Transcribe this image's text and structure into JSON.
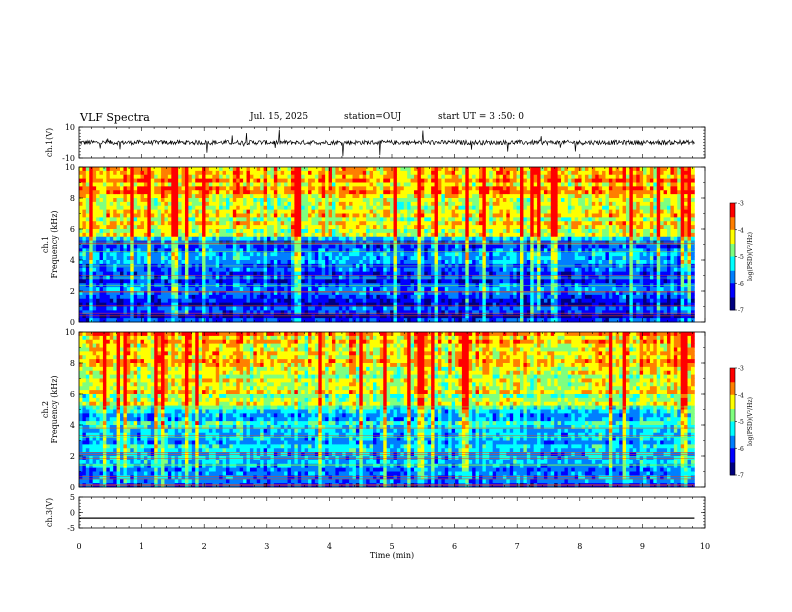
{
  "header": {
    "title": "VLF Spectra",
    "date": "Jul. 15, 2025",
    "station": "station=OUJ",
    "start_time": "start UT =  3 :50: 0"
  },
  "chart_data": [
    {
      "type": "line",
      "id": "ch1-waveform",
      "ylabel": "ch.1(V)",
      "ylim": [
        -10,
        10
      ],
      "yticks": [
        "10",
        "-10"
      ],
      "baseline": 0,
      "noise_amplitude": 1.5
    },
    {
      "type": "heatmap",
      "id": "ch1-spectrogram",
      "ylabel": "ch.1\nFrequency (kHz)",
      "ylabel_lines": [
        "ch.1",
        "Frequency (kHz)"
      ],
      "ylim": [
        0,
        10
      ],
      "yticks": [
        "0",
        "2",
        "4",
        "6",
        "8",
        "10"
      ],
      "colorbar": {
        "label": "log(PSD)(V²/Hz)",
        "range": [
          -7,
          -3
        ],
        "ticks": [
          "-3",
          "-4",
          "-5",
          "-6",
          "-7"
        ]
      }
    },
    {
      "type": "heatmap",
      "id": "ch2-spectrogram",
      "ylabel": "ch.2\nFrequency (kHz)",
      "ylabel_lines": [
        "ch.2",
        "Frequency (kHz)"
      ],
      "ylim": [
        0,
        10
      ],
      "yticks": [
        "0",
        "2",
        "4",
        "6",
        "8",
        "10"
      ],
      "colorbar": {
        "label": "log(PSD)(V²/Hz)",
        "range": [
          -7,
          -3
        ],
        "ticks": [
          "-3",
          "-4",
          "-5",
          "-6",
          "-7"
        ]
      }
    },
    {
      "type": "line",
      "id": "ch3-waveform",
      "ylabel": "ch.3(V)",
      "ylim": [
        -5,
        5
      ],
      "yticks": [
        "5",
        "0",
        "-5"
      ],
      "baseline": -1.8,
      "noise_amplitude": 0
    }
  ],
  "xaxis": {
    "label": "Time (min)",
    "range": [
      0,
      10
    ],
    "ticks": [
      "0",
      "1",
      "2",
      "3",
      "4",
      "5",
      "6",
      "7",
      "8",
      "9",
      "10"
    ],
    "data_end": 9.83
  },
  "colors": {
    "axis": "#000000",
    "trace": "#000000",
    "cmap": [
      "#00007f",
      "#0000ff",
      "#007fff",
      "#00ffff",
      "#7fff7f",
      "#ffff00",
      "#ff7f00",
      "#ff0000",
      "#ffffff"
    ]
  }
}
